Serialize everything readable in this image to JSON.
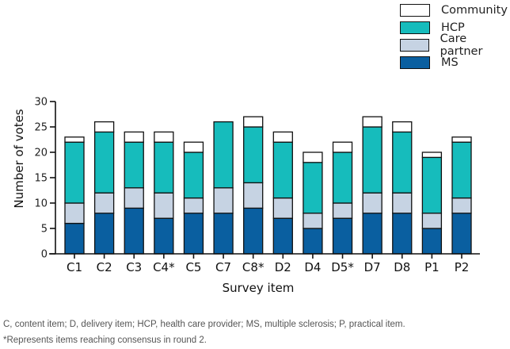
{
  "chart_data": {
    "type": "bar",
    "stacked": true,
    "categories": [
      "C1",
      "C2",
      "C3",
      "C4*",
      "C5",
      "C7",
      "C8*",
      "D2",
      "D4",
      "D5*",
      "D7",
      "D8",
      "P1",
      "P2"
    ],
    "series": [
      {
        "name": "MS",
        "color": "#0a5fa0",
        "values": [
          6,
          8,
          9,
          7,
          8,
          8,
          9,
          7,
          5,
          7,
          8,
          8,
          5,
          8
        ]
      },
      {
        "name": "Care partner",
        "color": "#c6d3e3",
        "values": [
          4,
          4,
          4,
          5,
          3,
          5,
          5,
          4,
          3,
          3,
          4,
          4,
          3,
          3
        ]
      },
      {
        "name": "HCP",
        "color": "#16bcbc",
        "values": [
          12,
          12,
          9,
          10,
          9,
          13,
          11,
          11,
          10,
          10,
          13,
          12,
          11,
          11
        ]
      },
      {
        "name": "Community",
        "color": "#ffffff",
        "values": [
          1,
          2,
          2,
          2,
          2,
          0,
          2,
          2,
          2,
          2,
          2,
          2,
          1,
          1
        ]
      }
    ],
    "legend_order": [
      "Community",
      "HCP",
      "Care partner",
      "MS"
    ],
    "ylabel": "Number of votes",
    "xlabel": "Survey item",
    "ylim": [
      0,
      30
    ],
    "yticks": [
      0,
      5,
      10,
      15,
      20,
      25,
      30
    ]
  },
  "footnotes": {
    "line1": "C, content item; D, delivery item; HCP, health care provider; MS, multiple sclerosis; P, practical item.",
    "line2": "*Represents items reaching consensus in round 2."
  }
}
